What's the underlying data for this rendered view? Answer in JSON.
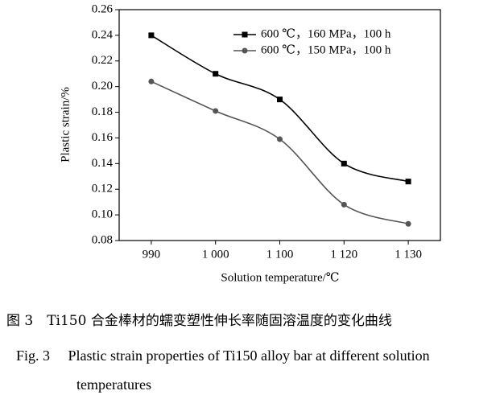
{
  "chart_data": {
    "type": "line",
    "categories": [
      "990",
      "1 000",
      "1 100",
      "1 120",
      "1 130"
    ],
    "series": [
      {
        "name": "600 ℃，160 MPa，100 h",
        "color": "#000000",
        "marker": "square",
        "values": [
          0.24,
          0.21,
          0.19,
          0.14,
          0.126
        ]
      },
      {
        "name": "600 ℃，150 MPa，100 h",
        "color": "#555555",
        "marker": "circle",
        "values": [
          0.204,
          0.181,
          0.159,
          0.108,
          0.093
        ]
      }
    ],
    "ylim": [
      0.08,
      0.26
    ],
    "yticks": [
      0.08,
      {
        "value": 0.1,
        "label": "0.10"
      },
      0.12,
      0.14,
      0.16,
      0.18,
      {
        "value": 0.2,
        "label": "0.20"
      },
      0.22,
      0.24,
      0.26
    ],
    "ylabel": "Plastic strain/%",
    "xlabel": "Solution temperature/℃",
    "legend": "upper right"
  },
  "caption_cn": "图 3　Ti150 合金棒材的蠕变塑性伸长率随固溶温度的变化曲线",
  "caption_en": "Fig. 3　 Plastic strain properties of Ti150 alloy bar at different solution temperatures"
}
